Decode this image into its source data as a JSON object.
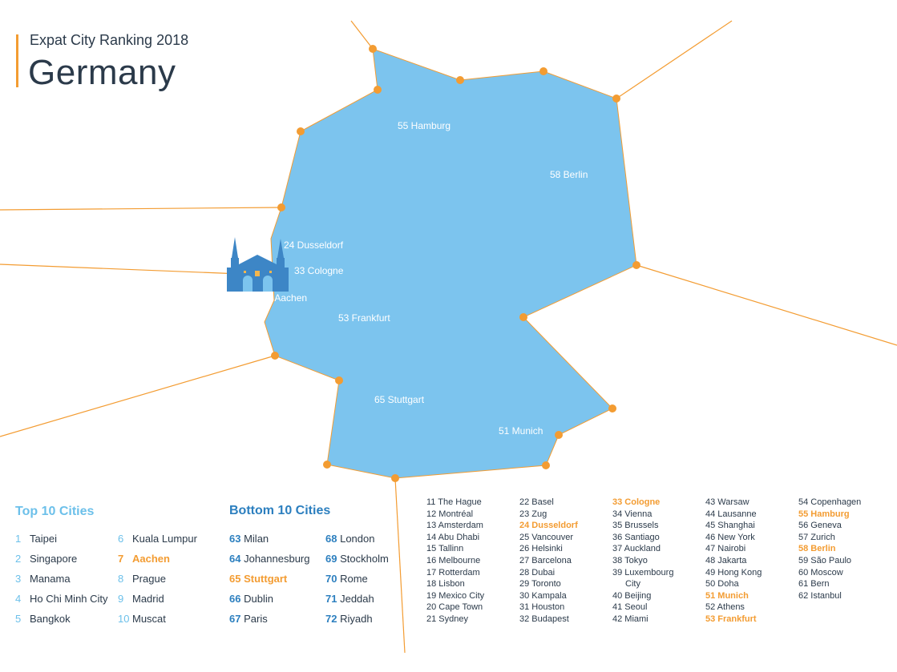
{
  "header": {
    "subtitle": "Expat City Ranking 2018",
    "title": "Germany"
  },
  "colors": {
    "map_fill": "#7cc4ee",
    "border": "#f39c32",
    "accent": "#f39c32",
    "dark_blue": "#2c7fbf",
    "light_blue": "#6cc0ea"
  },
  "icons": {
    "landmark": "aachen-cathedral-icon"
  },
  "map_labels": [
    {
      "name": "map-label-hamburg",
      "text": "55  Hamburg"
    },
    {
      "name": "map-label-berlin",
      "text": "58 Berlin"
    },
    {
      "name": "map-label-dusseldorf",
      "text": "24 Dusseldorf"
    },
    {
      "name": "map-label-cologne",
      "text": "33 Cologne"
    },
    {
      "name": "map-label-aachen",
      "text": "7 Aachen"
    },
    {
      "name": "map-label-frankfurt",
      "text": "53  Frankfurt"
    },
    {
      "name": "map-label-stuttgart",
      "text": "65  Stuttgart"
    },
    {
      "name": "map-label-munich",
      "text": "51 Munich"
    }
  ],
  "top10": {
    "title": "Top 10 Cities",
    "col1": [
      {
        "n": "1",
        "city": "Taipei"
      },
      {
        "n": "2",
        "city": "Singapore"
      },
      {
        "n": "3",
        "city": "Manama"
      },
      {
        "n": "4",
        "city": "Ho Chi Minh City"
      },
      {
        "n": "5",
        "city": "Bangkok"
      }
    ],
    "col2": [
      {
        "n": "6",
        "city": "Kuala Lumpur"
      },
      {
        "n": "7",
        "city": "Aachen",
        "highlight": true
      },
      {
        "n": "8",
        "city": "Prague"
      },
      {
        "n": "9",
        "city": "Madrid"
      },
      {
        "n": "10",
        "city": "Muscat"
      }
    ]
  },
  "bottom10": {
    "title": "Bottom 10 Cities",
    "col1": [
      {
        "n": "63",
        "city": "Milan"
      },
      {
        "n": "64",
        "city": "Johannesburg"
      },
      {
        "n": "65",
        "city": "Stuttgart",
        "highlight": true
      },
      {
        "n": "66",
        "city": "Dublin"
      },
      {
        "n": "67",
        "city": "Paris"
      }
    ],
    "col2": [
      {
        "n": "68",
        "city": "London"
      },
      {
        "n": "69",
        "city": "Stockholm"
      },
      {
        "n": "70",
        "city": "Rome"
      },
      {
        "n": "71",
        "city": "Jeddah"
      },
      {
        "n": "72",
        "city": "Riyadh"
      }
    ]
  },
  "ranking_columns": [
    [
      {
        "text": "11 The Hague"
      },
      {
        "text": "12 Montréal"
      },
      {
        "text": "13 Amsterdam"
      },
      {
        "text": "14 Abu Dhabi"
      },
      {
        "text": "15 Tallinn"
      },
      {
        "text": "16 Melbourne"
      },
      {
        "text": "17 Rotterdam"
      },
      {
        "text": "18 Lisbon"
      },
      {
        "text": "19 Mexico City"
      },
      {
        "text": "20 Cape Town"
      },
      {
        "text": "21 Sydney"
      }
    ],
    [
      {
        "text": "22 Basel"
      },
      {
        "text": "23 Zug"
      },
      {
        "text": "24 Dusseldorf",
        "highlight": true
      },
      {
        "text": "25 Vancouver"
      },
      {
        "text": "26 Helsinki"
      },
      {
        "text": "27 Barcelona"
      },
      {
        "text": "28 Dubai"
      },
      {
        "text": "29 Toronto"
      },
      {
        "text": "30 Kampala"
      },
      {
        "text": "31 Houston"
      },
      {
        "text": "32 Budapest"
      }
    ],
    [
      {
        "text": "33 Cologne",
        "highlight": true
      },
      {
        "text": "34 Vienna"
      },
      {
        "text": "35 Brussels"
      },
      {
        "text": "36 Santiago"
      },
      {
        "text": "37 Auckland"
      },
      {
        "text": "38 Tokyo"
      },
      {
        "text": "39 Luxembourg"
      },
      {
        "text": "City"
      },
      {
        "text": "40 Beijing"
      },
      {
        "text": "41 Seoul"
      },
      {
        "text": "42 Miami"
      }
    ],
    [
      {
        "text": "43 Warsaw"
      },
      {
        "text": "44 Lausanne"
      },
      {
        "text": "45 Shanghai"
      },
      {
        "text": "46 New York"
      },
      {
        "text": "47 Nairobi"
      },
      {
        "text": "48 Jakarta"
      },
      {
        "text": "49 Hong Kong"
      },
      {
        "text": "50 Doha"
      },
      {
        "text": "51 Munich",
        "highlight": true
      },
      {
        "text": "52 Athens"
      },
      {
        "text": "53 Frankfurt",
        "highlight": true
      }
    ],
    [
      {
        "text": "54 Copenhagen"
      },
      {
        "text": "55 Hamburg",
        "highlight": true
      },
      {
        "text": "56 Geneva"
      },
      {
        "text": "57 Zurich"
      },
      {
        "text": "58 Berlin",
        "highlight": true
      },
      {
        "text": "59 São Paulo"
      },
      {
        "text": "60 Moscow"
      },
      {
        "text": "61 Bern"
      },
      {
        "text": "62 Istanbul"
      }
    ]
  ]
}
